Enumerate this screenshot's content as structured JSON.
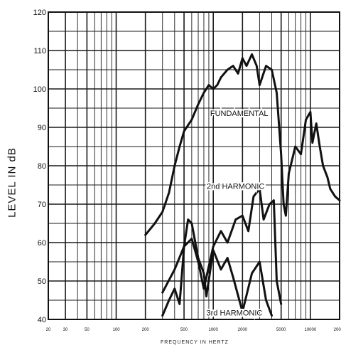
{
  "chart_data": {
    "type": "line",
    "xlabel": "FREQUENCY IN HERTZ",
    "ylabel": "LEVEL IN dB",
    "xscale": "log",
    "xlim": [
      20,
      20000
    ],
    "ylim": [
      40,
      120
    ],
    "grid": true,
    "x_ticks": [
      20,
      30,
      50,
      100,
      200,
      500,
      1000,
      2000,
      5000,
      10000,
      20000
    ],
    "x_tick_labels": [
      "20",
      "30",
      "50",
      "100",
      "200",
      "500",
      "1000",
      "2000",
      "5000",
      "10000",
      "20000"
    ],
    "y_ticks": [
      40,
      50,
      60,
      70,
      80,
      90,
      100,
      110,
      120
    ],
    "annotations": [
      "FUNDAMENTAL",
      "2nd HARMONIC",
      "3rd HARMONIC"
    ],
    "series": [
      {
        "name": "FUNDAMENTAL",
        "points": [
          [
            200,
            62
          ],
          [
            250,
            65
          ],
          [
            300,
            68
          ],
          [
            350,
            73
          ],
          [
            400,
            80
          ],
          [
            450,
            85
          ],
          [
            500,
            89
          ],
          [
            600,
            92
          ],
          [
            700,
            96
          ],
          [
            800,
            99
          ],
          [
            900,
            101
          ],
          [
            1000,
            100
          ],
          [
            1100,
            101
          ],
          [
            1200,
            103
          ],
          [
            1400,
            105
          ],
          [
            1600,
            106
          ],
          [
            1800,
            104
          ],
          [
            2000,
            108
          ],
          [
            2200,
            106
          ],
          [
            2500,
            109
          ],
          [
            2800,
            106
          ],
          [
            3000,
            101
          ],
          [
            3500,
            106
          ],
          [
            4000,
            105
          ],
          [
            4500,
            99
          ],
          [
            5000,
            83
          ],
          [
            5300,
            70
          ],
          [
            5600,
            67
          ],
          [
            6000,
            78
          ],
          [
            7000,
            85
          ],
          [
            8000,
            83
          ],
          [
            9000,
            92
          ],
          [
            10000,
            94
          ],
          [
            10500,
            86
          ],
          [
            11500,
            91
          ],
          [
            12500,
            85
          ],
          [
            13500,
            80
          ],
          [
            15000,
            77
          ],
          [
            16000,
            74
          ],
          [
            18000,
            72
          ],
          [
            20000,
            71
          ]
        ]
      },
      {
        "name": "2nd HARMONIC",
        "points": [
          [
            300,
            47
          ],
          [
            400,
            53
          ],
          [
            500,
            59
          ],
          [
            600,
            61
          ],
          [
            700,
            55
          ],
          [
            800,
            48
          ],
          [
            1000,
            59
          ],
          [
            1200,
            63
          ],
          [
            1400,
            60
          ],
          [
            1700,
            66
          ],
          [
            2000,
            67
          ],
          [
            2300,
            63
          ],
          [
            2600,
            72
          ],
          [
            3000,
            74
          ],
          [
            3300,
            66
          ],
          [
            3800,
            70
          ],
          [
            4200,
            71
          ],
          [
            4500,
            50
          ],
          [
            5000,
            44
          ]
        ]
      },
      {
        "name": "3rd HARMONIC",
        "points": [
          [
            300,
            41
          ],
          [
            350,
            45
          ],
          [
            400,
            48
          ],
          [
            450,
            44
          ],
          [
            500,
            59
          ],
          [
            550,
            66
          ],
          [
            600,
            65
          ],
          [
            700,
            56
          ],
          [
            800,
            52
          ],
          [
            850,
            46
          ],
          [
            1000,
            58
          ],
          [
            1200,
            53
          ],
          [
            1400,
            56
          ],
          [
            1600,
            51
          ],
          [
            2000,
            42
          ],
          [
            2500,
            52
          ],
          [
            3000,
            55
          ],
          [
            3500,
            45
          ],
          [
            4000,
            41
          ]
        ]
      }
    ]
  }
}
